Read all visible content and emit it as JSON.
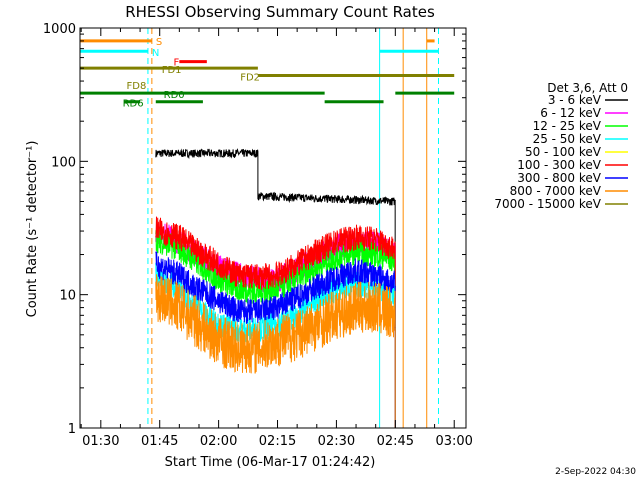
{
  "chart_data": {
    "type": "line",
    "title": "RHESSI Observing Summary Count Rates",
    "xlabel": "Start Time (06-Mar-17 01:24:42)",
    "ylabel": "Count Rate (s⁻¹ detector⁻¹)",
    "yscale": "log",
    "xlim_minutes": [
      "01:24:42",
      "03:03:00"
    ],
    "ylim": [
      1,
      1000
    ],
    "x_ticks": [
      "01:30",
      "01:45",
      "02:00",
      "02:15",
      "02:30",
      "02:45",
      "03:00"
    ],
    "y_ticks": [
      "1",
      "10",
      "100",
      "1000"
    ],
    "legend": {
      "placement": "right",
      "header": "Det 3,6, Att 0",
      "entries": [
        {
          "name": "3 - 6 keV",
          "color": "#000000"
        },
        {
          "name": "6 - 12 keV",
          "color": "#ff00ff"
        },
        {
          "name": "12 - 25 keV",
          "color": "#00ff00"
        },
        {
          "name": "25 - 50 keV",
          "color": "#00ffff"
        },
        {
          "name": "50 - 100 keV",
          "color": "#ffff00"
        },
        {
          "name": "100 - 300 keV",
          "color": "#ff0000"
        },
        {
          "name": "300 - 800 keV",
          "color": "#0000ff"
        },
        {
          "name": "800 - 7000 keV",
          "color": "#ff8c00"
        },
        {
          "name": "7000 - 15000 keV",
          "color": "#808000"
        }
      ]
    },
    "series": [
      {
        "name": "3 - 6 keV",
        "color": "#000000",
        "segments": [
          {
            "x": [
              "01:44",
              "02:10"
            ],
            "y": [
              115,
              115
            ]
          },
          {
            "x": [
              "02:10",
              "02:45"
            ],
            "y": [
              55,
              50
            ]
          }
        ]
      },
      {
        "name": "6 - 12 keV",
        "color": "#ff00ff",
        "x": [
          "01:44",
          "01:50",
          "01:55",
          "02:00",
          "02:05",
          "02:10",
          "02:15",
          "02:20",
          "02:25",
          "02:30",
          "02:35",
          "02:40",
          "02:45"
        ],
        "y": [
          30,
          25,
          20,
          16,
          14,
          13,
          13,
          15,
          19,
          23,
          25,
          24,
          20
        ]
      },
      {
        "name": "12 - 25 keV",
        "color": "#00ff00",
        "x": [
          "01:44",
          "01:50",
          "01:55",
          "02:00",
          "02:05",
          "02:10",
          "02:15",
          "02:20",
          "02:25",
          "02:30",
          "02:35",
          "02:40",
          "02:45"
        ],
        "y": [
          26,
          22,
          17,
          13,
          11,
          10.5,
          11,
          13,
          16,
          19,
          21,
          20,
          18
        ]
      },
      {
        "name": "25 - 50 keV",
        "color": "#00ffff",
        "x": [
          "01:44",
          "01:50",
          "01:55",
          "02:00",
          "02:05",
          "02:10",
          "02:15",
          "02:20",
          "02:25",
          "02:30",
          "02:35",
          "02:40",
          "02:45"
        ],
        "y": [
          14,
          11,
          8,
          6,
          5.5,
          5.5,
          6,
          7,
          9,
          11,
          12,
          11,
          10
        ]
      },
      {
        "name": "100 - 300 keV",
        "color": "#ff0000",
        "x": [
          "01:44",
          "01:50",
          "01:55",
          "02:00",
          "02:05",
          "02:10",
          "02:15",
          "02:20",
          "02:25",
          "02:30",
          "02:35",
          "02:40",
          "02:45"
        ],
        "y": [
          31,
          27,
          21,
          17,
          14,
          13.5,
          14,
          17,
          21,
          25,
          27,
          26,
          22
        ]
      },
      {
        "name": "300 - 800 keV",
        "color": "#0000ff",
        "x": [
          "01:44",
          "01:50",
          "01:55",
          "02:00",
          "02:05",
          "02:10",
          "02:15",
          "02:20",
          "02:25",
          "02:30",
          "02:35",
          "02:40",
          "02:45"
        ],
        "y": [
          17,
          14,
          11,
          9,
          7.5,
          7.5,
          8,
          9.5,
          11.5,
          13.5,
          15,
          14,
          12
        ]
      },
      {
        "name": "800 - 7000 keV",
        "color": "#ff8c00",
        "x": [
          "01:44",
          "01:50",
          "01:55",
          "02:00",
          "02:05",
          "02:10",
          "02:15",
          "02:20",
          "02:25",
          "02:30",
          "02:35",
          "02:40",
          "02:45"
        ],
        "y": [
          10,
          8,
          6,
          4.5,
          4,
          4,
          4.5,
          5,
          6,
          7,
          8,
          8,
          7
        ]
      }
    ],
    "flag_bars": [
      {
        "label": "S",
        "color": "#ff8c00",
        "x": [
          [
            "01:24",
            "01:43"
          ],
          [
            "02:53",
            "02:55"
          ]
        ],
        "level": 800
      },
      {
        "label": "N",
        "color": "#00ffff",
        "x": [
          [
            "01:24",
            "01:42"
          ],
          [
            "02:41",
            "02:56"
          ]
        ],
        "level": 670
      },
      {
        "label": "F",
        "color": "#ff0000",
        "x": [
          [
            "01:50",
            "01:57"
          ]
        ],
        "level": 560
      },
      {
        "label": "FD1",
        "color": "#808000",
        "x": [
          [
            "01:24",
            "02:10"
          ]
        ],
        "level": 500
      },
      {
        "label": "FD2",
        "color": "#808000",
        "x": [
          [
            "02:10",
            "03:00"
          ]
        ],
        "level": 440
      },
      {
        "label": "FD8",
        "color": "#808000",
        "x": [],
        "level": 380
      },
      {
        "label": "RD0",
        "color": "#008000",
        "x": [
          [
            "01:24",
            "02:27"
          ],
          [
            "02:45",
            "03:00"
          ]
        ],
        "level": 325
      },
      {
        "label": "RD6",
        "color": "#008000",
        "x": [
          [
            "01:36",
            "01:40"
          ],
          [
            "01:44",
            "01:56"
          ],
          [
            "02:27",
            "02:42"
          ]
        ],
        "level": 280
      }
    ],
    "vertical_markers": [
      {
        "x": "01:24:42",
        "color": "#00ffff",
        "style": "solid"
      },
      {
        "x": "01:42",
        "color": "#00ffff",
        "style": "dashed"
      },
      {
        "x": "01:43",
        "color": "#ff8c00",
        "style": "dashed"
      },
      {
        "x": "02:41",
        "color": "#00ffff",
        "style": "solid"
      },
      {
        "x": "02:47",
        "color": "#ff8c00",
        "style": "solid"
      },
      {
        "x": "02:53",
        "color": "#ff8c00",
        "style": "solid"
      },
      {
        "x": "02:56",
        "color": "#00ffff",
        "style": "dashed"
      }
    ]
  },
  "footer": {
    "timestamp": "2-Sep-2022 04:30"
  }
}
